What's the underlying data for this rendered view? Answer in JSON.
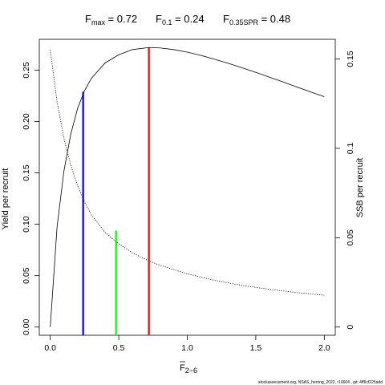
{
  "chart_data": {
    "type": "line",
    "title_parts": [
      {
        "main": "F",
        "sub": "max",
        "value": " = 0.72"
      },
      {
        "main": "F",
        "sub": "0.1",
        "value": " = 0.24"
      },
      {
        "main": "F",
        "sub": "0.35SPR",
        "value": " = 0.48"
      }
    ],
    "xlabel": {
      "main": "F",
      "sub": "2−6"
    },
    "ylabel_left": "Yield per recruit",
    "ylabel_right": "SSB per recruit",
    "xlim": [
      -0.08,
      2.08
    ],
    "ylim_left": [
      -0.008,
      0.28
    ],
    "ylim_right": [
      -0.0046,
      0.161
    ],
    "x_ticks": [
      0,
      0.5,
      1,
      1.5,
      2
    ],
    "x_tick_labels": [
      "0.0",
      "0.5",
      "1.0",
      "1.5",
      "2.0"
    ],
    "y_left_ticks": [
      0,
      0.05,
      0.1,
      0.15,
      0.2,
      0.25
    ],
    "y_left_tick_labels": [
      "0.00",
      "0.05",
      "0.10",
      "0.15",
      "0.20",
      "0.25"
    ],
    "y_right_ticks": [
      0,
      0.05,
      0.1,
      0.15
    ],
    "y_right_tick_labels": [
      "0",
      "0.05",
      "0.1",
      "0.15"
    ],
    "series": [
      {
        "axis": "left",
        "style": "solid",
        "x": [
          0,
          0.05,
          0.1,
          0.15,
          0.2,
          0.25,
          0.3,
          0.4,
          0.5,
          0.6,
          0.72,
          0.8,
          0.9,
          1.0,
          1.1,
          1.2,
          1.3,
          1.4,
          1.5,
          1.6,
          1.7,
          1.8,
          1.9,
          2.0
        ],
        "y": [
          0,
          0.098,
          0.152,
          0.188,
          0.213,
          0.23,
          0.242,
          0.257,
          0.265,
          0.27,
          0.272,
          0.2716,
          0.27,
          0.2675,
          0.2643,
          0.2606,
          0.2566,
          0.2523,
          0.2478,
          0.2431,
          0.2384,
          0.2336,
          0.2288,
          0.2241
        ]
      },
      {
        "axis": "right",
        "style": "dotted",
        "x": [
          0,
          0.05,
          0.1,
          0.15,
          0.2,
          0.25,
          0.3,
          0.4,
          0.48,
          0.6,
          0.72,
          0.8,
          1.0,
          1.2,
          1.4,
          1.6,
          1.8,
          2.0
        ],
        "y": [
          0.155,
          0.126,
          0.1055,
          0.0905,
          0.079,
          0.07,
          0.0628,
          0.053,
          0.0477,
          0.0415,
          0.037,
          0.0346,
          0.0298,
          0.0261,
          0.0233,
          0.0211,
          0.0193,
          0.0178
        ]
      }
    ],
    "reference_lines": [
      {
        "name": "F0.1",
        "x": 0.24,
        "y_top": 0.229,
        "color": "#0000ff"
      },
      {
        "name": "F0.35SPR",
        "x": 0.48,
        "y_top": 0.094,
        "color": "#00ff00"
      },
      {
        "name": "Fmax",
        "x": 0.72,
        "y_top": 0.272,
        "color": "#ff0000"
      }
    ],
    "grid": false,
    "legend": "none"
  },
  "footer": "stockassessment.org, NSAS_herring_2022, r16604 , git: 4ff6cf225add"
}
